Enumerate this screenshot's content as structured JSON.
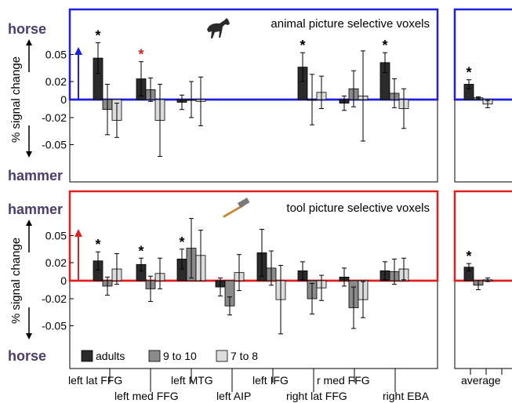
{
  "chart_data": [
    {
      "type": "bar",
      "title": "animal picture selective voxels",
      "ylabel": "% signal change",
      "top_label": "horse",
      "bottom_label": "hammer",
      "box_color": "#1f1fe0",
      "ylim": [
        -0.07,
        0.07
      ],
      "yticks": [
        "0.05",
        "0.02",
        "0",
        "-0.02",
        "-0.05"
      ],
      "ytick_values": [
        0.05,
        0.02,
        0,
        -0.02,
        -0.05
      ],
      "groups": [
        {
          "values": [
            0.046,
            -0.011,
            -0.023
          ],
          "errors": [
            0.017,
            0.028,
            0.019
          ],
          "stars": [
            {
              "series": 0,
              "color": "black"
            }
          ]
        },
        {
          "values": [
            0.023,
            0.011,
            -0.023
          ],
          "errors": [
            0.019,
            0.013,
            0.04
          ],
          "stars": [
            {
              "series": 0,
              "color": "red"
            }
          ]
        },
        {
          "values": [
            -0.003,
            0.0,
            -0.002
          ],
          "errors": [
            0.008,
            0.02,
            0.027
          ],
          "stars": []
        },
        {
          "values": [
            0.036,
            0.0,
            0.008
          ],
          "errors": [
            0.016,
            0.028,
            0.018
          ],
          "stars": [
            {
              "series": 0,
              "color": "black"
            }
          ]
        },
        {
          "values": [
            -0.004,
            0.012,
            0.004
          ],
          "errors": [
            0.008,
            0.02,
            0.05
          ],
          "stars": []
        },
        {
          "values": [
            0.041,
            0.007,
            -0.01
          ],
          "errors": [
            0.011,
            0.016,
            0.022
          ],
          "stars": [
            {
              "series": 0,
              "color": "black"
            }
          ]
        }
      ],
      "average": {
        "values": [
          0.017,
          0.002,
          -0.005
        ],
        "errors": [
          0.005,
          0.001,
          0.004
        ],
        "stars": [
          {
            "series": 0,
            "color": "black"
          }
        ]
      }
    },
    {
      "type": "bar",
      "title": "tool picture selective voxels",
      "ylabel": "% signal change",
      "top_label": "hammer",
      "bottom_label": "horse",
      "box_color": "#e02020",
      "ylim": [
        -0.07,
        0.07
      ],
      "yticks": [
        "0.05",
        "0.02",
        "0",
        "-0.02",
        "-0.05"
      ],
      "ytick_values": [
        0.05,
        0.02,
        0,
        -0.02,
        -0.05
      ],
      "groups": [
        {
          "values": [
            0.022,
            -0.006,
            0.013
          ],
          "errors": [
            0.01,
            0.01,
            0.017
          ],
          "stars": [
            {
              "series": 0,
              "color": "black"
            }
          ]
        },
        {
          "values": [
            0.018,
            -0.009,
            0.008
          ],
          "errors": [
            0.007,
            0.014,
            0.017
          ],
          "stars": [
            {
              "series": 0,
              "color": "black"
            }
          ]
        },
        {
          "values": [
            0.024,
            0.036,
            0.028
          ],
          "errors": [
            0.011,
            0.033,
            0.028
          ],
          "stars": [
            {
              "series": 0,
              "color": "black"
            }
          ]
        },
        {
          "values": [
            -0.007,
            -0.028,
            0.009
          ],
          "errors": [
            0.01,
            0.01,
            0.02
          ],
          "stars": []
        },
        {
          "values": [
            0.031,
            0.014,
            -0.021
          ],
          "errors": [
            0.026,
            0.019,
            0.038
          ],
          "stars": []
        },
        {
          "values": [
            0.011,
            -0.02,
            -0.008
          ],
          "errors": [
            0.01,
            0.017,
            0.014
          ],
          "stars": []
        },
        {
          "values": [
            0.004,
            -0.03,
            -0.021
          ],
          "errors": [
            0.01,
            0.023,
            0.02
          ],
          "stars": []
        },
        {
          "values": [
            0.011,
            0.01,
            0.013
          ],
          "errors": [
            0.01,
            0.014,
            0.012
          ],
          "stars": []
        }
      ],
      "average": {
        "values": [
          0.015,
          -0.005,
          0.001
        ],
        "errors": [
          0.004,
          0.005,
          0.002
        ],
        "stars": [
          {
            "series": 0,
            "color": "black"
          }
        ]
      }
    }
  ],
  "legend": {
    "items": [
      {
        "label": "adults",
        "color": "#2b2b2b"
      },
      {
        "label": "9 to 10",
        "color": "#8a8a8a"
      },
      {
        "label": "7 to 8",
        "color": "#dcdcdc"
      }
    ]
  },
  "x_labels": {
    "row1": [
      "left lat FFG",
      "left MTG",
      "left IFG",
      "r med FFG"
    ],
    "row2": [
      "left med FFG",
      "left AIP",
      "right lat FFG",
      "right EBA"
    ],
    "average": "average"
  },
  "icons": {
    "animal": "horse-icon",
    "tool": "hammer-icon"
  }
}
